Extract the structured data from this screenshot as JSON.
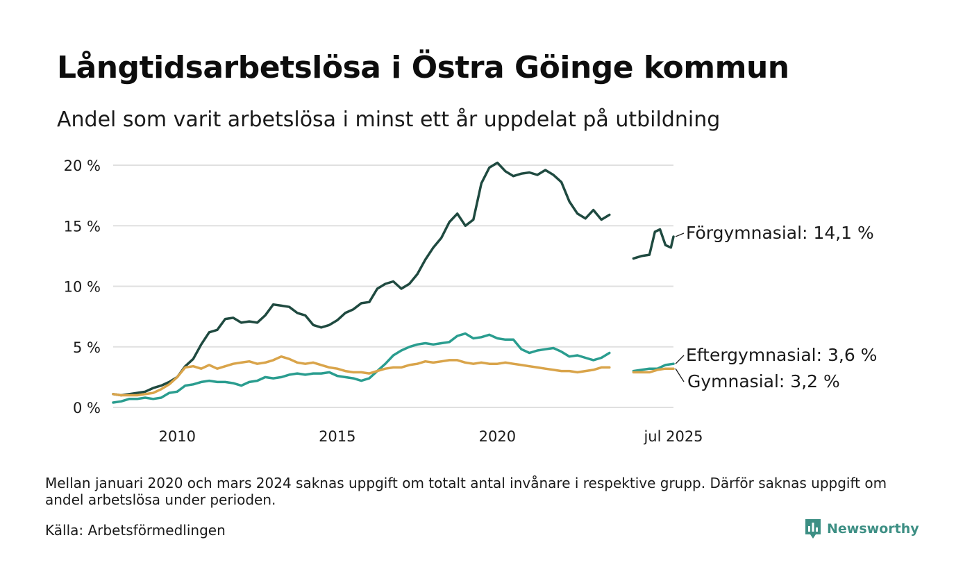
{
  "title": "Långtidsarbetslösa i Östra Göinge kommun",
  "subtitle": "Andel som varit arbetslösa i minst ett år uppdelat på utbildning",
  "footnote": "Mellan januari 2020 och mars 2024 saknas uppgift om totalt antal invånare i respektive grupp. Därför saknas uppgift om andel arbetslösa under perioden.",
  "source": "Källa: Arbetsförmedlingen",
  "brand": {
    "name": "Newsworthy",
    "icon": "newsworthy-logo-icon",
    "color": "#3d8f84"
  },
  "chart_data": {
    "type": "line",
    "title": "Långtidsarbetslösa i Östra Göinge kommun",
    "subtitle": "Andel som varit arbetslösa i minst ett år uppdelat på utbildning",
    "xlabel": "",
    "ylabel": "",
    "x_ticks": [
      {
        "label": "2010",
        "value": 2010.0
      },
      {
        "label": "2015",
        "value": 2015.0
      },
      {
        "label": "2020",
        "value": 2020.0
      },
      {
        "label": "jul 2025",
        "value": 2025.5
      }
    ],
    "y_ticks": [
      {
        "label": "0 %",
        "value": 0
      },
      {
        "label": "5 %",
        "value": 5
      },
      {
        "label": "10 %",
        "value": 10
      },
      {
        "label": "15 %",
        "value": 15
      },
      {
        "label": "20 %",
        "value": 20
      }
    ],
    "ylim": [
      0,
      20
    ],
    "xlim": [
      2008.0,
      2025.5
    ],
    "grid": true,
    "legend": "direct labels at line ends (right)",
    "series": [
      {
        "name": "Förgymnasial",
        "end_label": "Förgymnasial: 14,1 %",
        "color": "#1f4a40",
        "segments": [
          [
            [
              2008.0,
              1.1
            ],
            [
              2008.25,
              1.0
            ],
            [
              2008.5,
              1.1
            ],
            [
              2008.75,
              1.2
            ],
            [
              2009.0,
              1.3
            ],
            [
              2009.25,
              1.6
            ],
            [
              2009.5,
              1.8
            ],
            [
              2009.75,
              2.1
            ],
            [
              2010.0,
              2.5
            ],
            [
              2010.25,
              3.4
            ],
            [
              2010.5,
              4.0
            ],
            [
              2010.75,
              5.2
            ],
            [
              2011.0,
              6.2
            ],
            [
              2011.25,
              6.4
            ],
            [
              2011.5,
              7.3
            ],
            [
              2011.75,
              7.4
            ],
            [
              2012.0,
              7.0
            ],
            [
              2012.25,
              7.1
            ],
            [
              2012.5,
              7.0
            ],
            [
              2012.75,
              7.6
            ],
            [
              2013.0,
              8.5
            ],
            [
              2013.25,
              8.4
            ],
            [
              2013.5,
              8.3
            ],
            [
              2013.75,
              7.8
            ],
            [
              2014.0,
              7.6
            ],
            [
              2014.25,
              6.8
            ],
            [
              2014.5,
              6.6
            ],
            [
              2014.75,
              6.8
            ],
            [
              2015.0,
              7.2
            ],
            [
              2015.25,
              7.8
            ],
            [
              2015.5,
              8.1
            ],
            [
              2015.75,
              8.6
            ],
            [
              2016.0,
              8.7
            ],
            [
              2016.25,
              9.8
            ],
            [
              2016.5,
              10.2
            ],
            [
              2016.75,
              10.4
            ],
            [
              2017.0,
              9.8
            ],
            [
              2017.25,
              10.2
            ],
            [
              2017.5,
              11.0
            ],
            [
              2017.75,
              12.2
            ],
            [
              2018.0,
              13.2
            ],
            [
              2018.25,
              14.0
            ],
            [
              2018.5,
              15.3
            ],
            [
              2018.75,
              16.0
            ],
            [
              2019.0,
              15.0
            ],
            [
              2019.25,
              15.5
            ],
            [
              2019.5,
              18.5
            ],
            [
              2019.75,
              19.8
            ],
            [
              2020.0,
              20.2
            ],
            [
              2020.25,
              19.5
            ],
            [
              2020.5,
              19.1
            ],
            [
              2020.75,
              19.3
            ],
            [
              2021.0,
              19.4
            ],
            [
              2021.25,
              19.2
            ],
            [
              2021.5,
              19.6
            ],
            [
              2021.75,
              19.2
            ],
            [
              2022.0,
              18.6
            ],
            [
              2022.25,
              17.0
            ],
            [
              2022.5,
              16.0
            ],
            [
              2022.75,
              15.6
            ],
            [
              2023.0,
              16.3
            ],
            [
              2023.25,
              15.5
            ],
            [
              2023.5,
              15.9
            ]
          ],
          [
            [
              2024.25,
              12.3
            ],
            [
              2024.5,
              12.5
            ],
            [
              2024.75,
              12.6
            ],
            [
              2024.92,
              14.5
            ],
            [
              2025.08,
              14.7
            ],
            [
              2025.25,
              13.4
            ],
            [
              2025.42,
              13.2
            ],
            [
              2025.5,
              14.1
            ]
          ]
        ]
      },
      {
        "name": "Eftergymnasial",
        "end_label": "Eftergymnasial:  3,6 %",
        "color": "#2a9d8f",
        "segments": [
          [
            [
              2008.0,
              0.4
            ],
            [
              2008.25,
              0.5
            ],
            [
              2008.5,
              0.7
            ],
            [
              2008.75,
              0.7
            ],
            [
              2009.0,
              0.8
            ],
            [
              2009.25,
              0.7
            ],
            [
              2009.5,
              0.8
            ],
            [
              2009.75,
              1.2
            ],
            [
              2010.0,
              1.3
            ],
            [
              2010.25,
              1.8
            ],
            [
              2010.5,
              1.9
            ],
            [
              2010.75,
              2.1
            ],
            [
              2011.0,
              2.2
            ],
            [
              2011.25,
              2.1
            ],
            [
              2011.5,
              2.1
            ],
            [
              2011.75,
              2.0
            ],
            [
              2012.0,
              1.8
            ],
            [
              2012.25,
              2.1
            ],
            [
              2012.5,
              2.2
            ],
            [
              2012.75,
              2.5
            ],
            [
              2013.0,
              2.4
            ],
            [
              2013.25,
              2.5
            ],
            [
              2013.5,
              2.7
            ],
            [
              2013.75,
              2.8
            ],
            [
              2014.0,
              2.7
            ],
            [
              2014.25,
              2.8
            ],
            [
              2014.5,
              2.8
            ],
            [
              2014.75,
              2.9
            ],
            [
              2015.0,
              2.6
            ],
            [
              2015.25,
              2.5
            ],
            [
              2015.5,
              2.4
            ],
            [
              2015.75,
              2.2
            ],
            [
              2016.0,
              2.4
            ],
            [
              2016.25,
              3.0
            ],
            [
              2016.5,
              3.6
            ],
            [
              2016.75,
              4.3
            ],
            [
              2017.0,
              4.7
            ],
            [
              2017.25,
              5.0
            ],
            [
              2017.5,
              5.2
            ],
            [
              2017.75,
              5.3
            ],
            [
              2018.0,
              5.2
            ],
            [
              2018.25,
              5.3
            ],
            [
              2018.5,
              5.4
            ],
            [
              2018.75,
              5.9
            ],
            [
              2019.0,
              6.1
            ],
            [
              2019.25,
              5.7
            ],
            [
              2019.5,
              5.8
            ],
            [
              2019.75,
              6.0
            ],
            [
              2020.0,
              5.7
            ],
            [
              2020.25,
              5.6
            ],
            [
              2020.5,
              5.6
            ],
            [
              2020.75,
              4.8
            ],
            [
              2021.0,
              4.5
            ],
            [
              2021.25,
              4.7
            ],
            [
              2021.5,
              4.8
            ],
            [
              2021.75,
              4.9
            ],
            [
              2022.0,
              4.6
            ],
            [
              2022.25,
              4.2
            ],
            [
              2022.5,
              4.3
            ],
            [
              2022.75,
              4.1
            ],
            [
              2023.0,
              3.9
            ],
            [
              2023.25,
              4.1
            ],
            [
              2023.5,
              4.5
            ]
          ],
          [
            [
              2024.25,
              3.0
            ],
            [
              2024.5,
              3.1
            ],
            [
              2024.75,
              3.2
            ],
            [
              2025.0,
              3.2
            ],
            [
              2025.25,
              3.5
            ],
            [
              2025.5,
              3.6
            ]
          ]
        ]
      },
      {
        "name": "Gymnasial",
        "end_label": "Gymnasial:  3,2 %",
        "color": "#d9a44a",
        "segments": [
          [
            [
              2008.0,
              1.1
            ],
            [
              2008.25,
              1.0
            ],
            [
              2008.5,
              1.0
            ],
            [
              2008.75,
              1.0
            ],
            [
              2009.0,
              1.1
            ],
            [
              2009.25,
              1.2
            ],
            [
              2009.5,
              1.5
            ],
            [
              2009.75,
              1.9
            ],
            [
              2010.0,
              2.5
            ],
            [
              2010.25,
              3.3
            ],
            [
              2010.5,
              3.4
            ],
            [
              2010.75,
              3.2
            ],
            [
              2011.0,
              3.5
            ],
            [
              2011.25,
              3.2
            ],
            [
              2011.5,
              3.4
            ],
            [
              2011.75,
              3.6
            ],
            [
              2012.0,
              3.7
            ],
            [
              2012.25,
              3.8
            ],
            [
              2012.5,
              3.6
            ],
            [
              2012.75,
              3.7
            ],
            [
              2013.0,
              3.9
            ],
            [
              2013.25,
              4.2
            ],
            [
              2013.5,
              4.0
            ],
            [
              2013.75,
              3.7
            ],
            [
              2014.0,
              3.6
            ],
            [
              2014.25,
              3.7
            ],
            [
              2014.5,
              3.5
            ],
            [
              2014.75,
              3.3
            ],
            [
              2015.0,
              3.2
            ],
            [
              2015.25,
              3.0
            ],
            [
              2015.5,
              2.9
            ],
            [
              2015.75,
              2.9
            ],
            [
              2016.0,
              2.8
            ],
            [
              2016.25,
              3.0
            ],
            [
              2016.5,
              3.2
            ],
            [
              2016.75,
              3.3
            ],
            [
              2017.0,
              3.3
            ],
            [
              2017.25,
              3.5
            ],
            [
              2017.5,
              3.6
            ],
            [
              2017.75,
              3.8
            ],
            [
              2018.0,
              3.7
            ],
            [
              2018.25,
              3.8
            ],
            [
              2018.5,
              3.9
            ],
            [
              2018.75,
              3.9
            ],
            [
              2019.0,
              3.7
            ],
            [
              2019.25,
              3.6
            ],
            [
              2019.5,
              3.7
            ],
            [
              2019.75,
              3.6
            ],
            [
              2020.0,
              3.6
            ],
            [
              2020.25,
              3.7
            ],
            [
              2020.5,
              3.6
            ],
            [
              2020.75,
              3.5
            ],
            [
              2021.0,
              3.4
            ],
            [
              2021.25,
              3.3
            ],
            [
              2021.5,
              3.2
            ],
            [
              2021.75,
              3.1
            ],
            [
              2022.0,
              3.0
            ],
            [
              2022.25,
              3.0
            ],
            [
              2022.5,
              2.9
            ],
            [
              2022.75,
              3.0
            ],
            [
              2023.0,
              3.1
            ],
            [
              2023.25,
              3.3
            ],
            [
              2023.5,
              3.3
            ]
          ],
          [
            [
              2024.25,
              2.9
            ],
            [
              2024.5,
              2.9
            ],
            [
              2024.75,
              2.9
            ],
            [
              2025.0,
              3.1
            ],
            [
              2025.25,
              3.2
            ],
            [
              2025.5,
              3.2
            ]
          ]
        ]
      }
    ]
  }
}
